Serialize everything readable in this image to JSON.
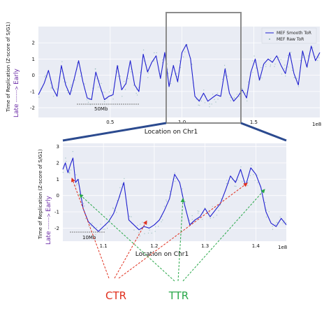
{
  "chart_data": [
    {
      "type": "line",
      "ylabel_prefix": "Time of Replication (Z-score of S/G1)",
      "ylabel_late": "Late",
      "ylabel_arrow": "------->",
      "ylabel_early": "Early",
      "xlabel": "Location on Chr1",
      "x_exponent_label": "1e8",
      "xlim": [
        0.0,
        1.96
      ],
      "ylim": [
        -2.6,
        3.0
      ],
      "yticks": [
        -2,
        -1,
        0,
        1,
        2
      ],
      "xticks": [
        0.5,
        1.0,
        1.5
      ],
      "xtick_labels": [
        "0.5",
        "1.0",
        "1.5"
      ],
      "grid": true,
      "legend_position": "top-right",
      "series": [
        {
          "name": "MEF Smooth ToR",
          "x": [
            0.0,
            0.04,
            0.07,
            0.1,
            0.13,
            0.16,
            0.19,
            0.22,
            0.25,
            0.28,
            0.31,
            0.34,
            0.37,
            0.4,
            0.43,
            0.46,
            0.49,
            0.52,
            0.55,
            0.58,
            0.61,
            0.64,
            0.67,
            0.7,
            0.73,
            0.76,
            0.79,
            0.82,
            0.85,
            0.88,
            0.91,
            0.94,
            0.97,
            1.0,
            1.03,
            1.06,
            1.09,
            1.12,
            1.15,
            1.18,
            1.21,
            1.24,
            1.27,
            1.3,
            1.33,
            1.36,
            1.39,
            1.42,
            1.45,
            1.48,
            1.51,
            1.54,
            1.57,
            1.6,
            1.63,
            1.66,
            1.69,
            1.72,
            1.75,
            1.78,
            1.81,
            1.84,
            1.87,
            1.9,
            1.93,
            1.96
          ],
          "y": [
            -1.2,
            -0.5,
            0.3,
            -0.8,
            -1.3,
            0.6,
            -0.6,
            -1.2,
            -0.2,
            0.9,
            -0.4,
            -1.4,
            -1.5,
            0.2,
            -0.7,
            -1.5,
            -1.3,
            -1.2,
            0.6,
            -0.9,
            -0.5,
            0.9,
            -0.6,
            -1.0,
            1.3,
            0.2,
            0.8,
            1.2,
            -0.2,
            1.4,
            -0.7,
            0.6,
            -0.4,
            1.4,
            1.9,
            1.0,
            -1.3,
            -1.6,
            -1.1,
            -1.6,
            -1.4,
            -1.2,
            -1.3,
            0.4,
            -1.1,
            -1.6,
            -1.3,
            -0.9,
            -1.4,
            0.2,
            1.0,
            -0.3,
            0.7,
            1.0,
            0.8,
            1.2,
            0.6,
            0.1,
            1.4,
            0.1,
            -0.6,
            1.5,
            0.5,
            1.8,
            0.9,
            1.4
          ]
        },
        {
          "name": "MEF Raw ToR",
          "x": [],
          "y": []
        }
      ],
      "annotations": [
        {
          "text": "50Mb"
        }
      ]
    },
    {
      "type": "line",
      "ylabel_prefix": "Time of Replication (Z-score of S/G1)",
      "ylabel_late": "Late",
      "ylabel_arrow": "------->",
      "ylabel_early": "Early",
      "xlabel": "Location on Chr1",
      "x_exponent_label": "1e8",
      "xlim": [
        1.02,
        1.46
      ],
      "ylim": [
        -2.8,
        3.2
      ],
      "yticks": [
        -2,
        -1,
        0,
        1,
        2,
        3
      ],
      "xticks": [
        1.1,
        1.2,
        1.3,
        1.4
      ],
      "xtick_labels": [
        "1.1",
        "1.2",
        "1.3",
        "1.4"
      ],
      "grid": true,
      "series": [
        {
          "name": "MEF Smooth ToR",
          "x": [
            1.02,
            1.025,
            1.03,
            1.035,
            1.04,
            1.045,
            1.05,
            1.06,
            1.07,
            1.08,
            1.09,
            1.1,
            1.11,
            1.12,
            1.13,
            1.14,
            1.15,
            1.16,
            1.17,
            1.18,
            1.19,
            1.2,
            1.21,
            1.22,
            1.23,
            1.24,
            1.25,
            1.26,
            1.27,
            1.28,
            1.29,
            1.3,
            1.31,
            1.32,
            1.33,
            1.34,
            1.35,
            1.36,
            1.37,
            1.38,
            1.39,
            1.4,
            1.41,
            1.42,
            1.43,
            1.44,
            1.45,
            1.46
          ],
          "y": [
            1.6,
            2.0,
            1.4,
            1.9,
            2.3,
            0.8,
            1.0,
            -0.8,
            -1.6,
            -1.9,
            -2.2,
            -1.9,
            -1.6,
            -1.1,
            -0.2,
            0.8,
            -1.5,
            -1.8,
            -2.1,
            -1.9,
            -2.0,
            -1.8,
            -1.5,
            -0.9,
            -0.2,
            1.3,
            0.8,
            -0.6,
            -1.8,
            -1.5,
            -1.3,
            -0.8,
            -1.3,
            -0.9,
            -0.5,
            0.3,
            1.2,
            0.8,
            1.6,
            0.6,
            1.7,
            1.3,
            0.5,
            -1.0,
            -1.7,
            -1.9,
            -1.4,
            -1.8
          ]
        }
      ],
      "annotations": [
        {
          "text": "10Mb"
        }
      ]
    }
  ],
  "labels": {
    "ctr": "CTR",
    "ttr": "TTR"
  },
  "colors": {
    "line": "#1f1fcf",
    "background": "#e9ecf4",
    "grid": "#ffffff",
    "raw": "#6fa8a0",
    "zoom_box": "#8c8c8c",
    "zoom_band": "#2b4a8f",
    "ctr": "#e0301e",
    "ttr": "#2aa84a",
    "ylabel_late_early": "#6a2aa6"
  }
}
